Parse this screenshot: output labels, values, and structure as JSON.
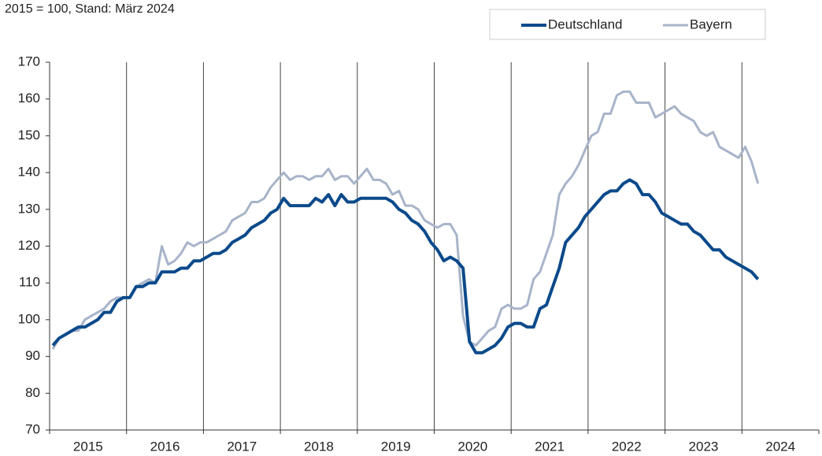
{
  "chart_data": {
    "type": "line",
    "subtitle": "2015 = 100, Stand: März 2024",
    "categories": [
      null,
      null,
      null,
      null,
      null,
      null,
      "2015",
      null,
      null,
      null,
      null,
      null,
      null,
      null,
      null,
      null,
      null,
      null,
      "2016",
      null,
      null,
      null,
      null,
      null,
      null,
      null,
      null,
      null,
      null,
      null,
      "2017",
      null,
      null,
      null,
      null,
      null,
      null,
      null,
      null,
      null,
      null,
      null,
      "2018",
      null,
      null,
      null,
      null,
      null,
      null,
      null,
      null,
      null,
      null,
      null,
      "2019",
      null,
      null,
      null,
      null,
      null,
      null,
      null,
      null,
      null,
      null,
      null,
      "2020",
      null,
      null,
      null,
      null,
      null,
      null,
      null,
      null,
      null,
      null,
      null,
      "2021",
      null,
      null,
      null,
      null,
      null,
      null,
      null,
      null,
      null,
      null,
      null,
      "2022",
      null,
      null,
      null,
      null,
      null,
      null,
      null,
      null,
      null,
      null,
      null,
      "2023",
      null,
      null,
      null,
      null,
      null,
      null,
      null,
      null,
      null,
      null,
      null,
      "2024",
      null,
      null,
      null,
      null,
      null
    ],
    "series": [
      {
        "name": "Deutschland",
        "color": "#0b4a8b",
        "values": [
          93,
          95,
          96,
          97,
          98,
          98,
          99,
          100,
          102,
          102,
          105,
          106,
          106,
          109,
          109,
          110,
          110,
          113,
          113,
          113,
          114,
          114,
          116,
          116,
          117,
          118,
          118,
          119,
          121,
          122,
          123,
          125,
          126,
          127,
          129,
          130,
          133,
          131,
          131,
          131,
          131,
          133,
          132,
          134,
          131,
          134,
          132,
          132,
          133,
          133,
          133,
          133,
          133,
          132,
          130,
          129,
          127,
          126,
          124,
          121,
          119,
          116,
          117,
          116,
          114,
          94,
          91,
          91,
          92,
          93,
          95,
          98,
          99,
          99,
          98,
          98,
          103,
          104,
          109,
          114,
          121,
          123,
          125,
          128,
          130,
          132,
          134,
          135,
          135,
          137,
          138,
          137,
          134,
          134,
          132,
          129,
          128,
          127,
          126,
          126,
          124,
          123,
          121,
          119,
          119,
          117,
          116,
          115,
          114,
          113,
          111,
          null,
          null,
          null,
          null,
          null,
          null,
          null,
          null,
          null
        ]
      },
      {
        "name": "Bayern",
        "color": "#a7b4c9",
        "values": [
          92,
          95,
          96,
          97,
          97,
          100,
          101,
          102,
          103,
          105,
          106,
          106,
          106,
          109,
          110,
          111,
          110,
          120,
          115,
          116,
          118,
          121,
          120,
          121,
          121,
          122,
          123,
          124,
          127,
          128,
          129,
          132,
          132,
          133,
          136,
          138,
          140,
          138,
          139,
          139,
          138,
          139,
          139,
          141,
          138,
          139,
          139,
          137,
          139,
          141,
          138,
          138,
          137,
          134,
          135,
          131,
          131,
          130,
          127,
          126,
          125,
          126,
          126,
          123,
          101,
          94,
          93,
          95,
          97,
          98,
          103,
          104,
          103,
          103,
          104,
          111,
          113,
          118,
          123,
          134,
          137,
          139,
          142,
          146,
          150,
          151,
          156,
          156,
          161,
          162,
          162,
          159,
          159,
          159,
          155,
          156,
          157,
          158,
          156,
          155,
          154,
          151,
          150,
          151,
          147,
          146,
          145,
          144,
          147,
          143,
          137,
          null,
          null,
          null,
          null,
          null,
          null,
          null,
          null,
          null
        ]
      }
    ],
    "ylim": [
      70,
      170
    ],
    "yticks": [
      70,
      80,
      90,
      100,
      110,
      120,
      130,
      140,
      150,
      160,
      170
    ],
    "legend": "top-right"
  }
}
